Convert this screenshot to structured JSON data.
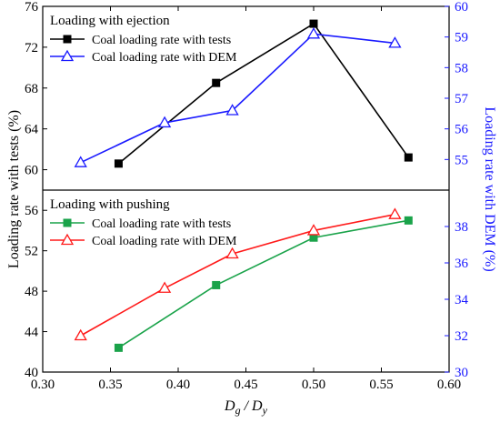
{
  "chart_data": {
    "type": "line",
    "x_axis": {
      "label_main": "D",
      "label_sub_1": "g",
      "label_sep": " / D",
      "label_sub_2": "y",
      "range": [
        0.3,
        0.6
      ],
      "ticks": [
        "0.30",
        "0.35",
        "0.40",
        "0.45",
        "0.50",
        "0.55",
        "0.60"
      ]
    },
    "colors": {
      "black": "#000000",
      "blue": "#1a1aff",
      "green": "#1aa34a",
      "red": "#ff1a1a"
    },
    "panels": [
      {
        "id": "ejection",
        "title": "Loading with ejection",
        "left_axis": {
          "range": [
            58,
            76
          ],
          "ticks": [
            "60",
            "64",
            "68",
            "72",
            "76"
          ]
        },
        "right_axis": {
          "range": [
            54,
            60
          ],
          "ticks": [
            "55",
            "56",
            "57",
            "58",
            "59",
            "60"
          ]
        },
        "series": [
          {
            "name": "Coal loading rate with tests",
            "axis": "left",
            "color": "#000000",
            "marker": "square-filled",
            "x": [
              0.356,
              0.428,
              0.5,
              0.57
            ],
            "y": [
              60.6,
              68.5,
              74.3,
              61.2
            ]
          },
          {
            "name": "Coal loading rate with DEM",
            "axis": "right",
            "color": "#1a1aff",
            "marker": "triangle-open",
            "x": [
              0.328,
              0.39,
              0.44,
              0.5,
              0.56
            ],
            "y": [
              54.9,
              56.2,
              56.6,
              59.1,
              58.8
            ]
          }
        ]
      },
      {
        "id": "pushing",
        "title": "Loading with pushing",
        "left_axis": {
          "range": [
            40,
            58
          ],
          "ticks": [
            "40",
            "44",
            "48",
            "52",
            "56"
          ]
        },
        "right_axis": {
          "range": [
            30,
            40
          ],
          "ticks": [
            "30",
            "32",
            "34",
            "36",
            "38"
          ]
        },
        "series": [
          {
            "name": "Coal loading rate with tests",
            "axis": "left",
            "color": "#1aa34a",
            "marker": "square-filled",
            "x": [
              0.356,
              0.428,
              0.5,
              0.57
            ],
            "y": [
              42.4,
              48.6,
              53.3,
              55.0
            ]
          },
          {
            "name": "Coal loading rate with DEM",
            "axis": "left",
            "color": "#ff1a1a",
            "marker": "triangle-open",
            "x": [
              0.328,
              0.39,
              0.44,
              0.5,
              0.56
            ],
            "y": [
              43.6,
              48.3,
              51.7,
              54.0,
              55.6
            ]
          }
        ]
      }
    ],
    "y_left_label": "Loading rate with tests (%)",
    "y_right_label": "Loading rate with DEM (%)"
  }
}
